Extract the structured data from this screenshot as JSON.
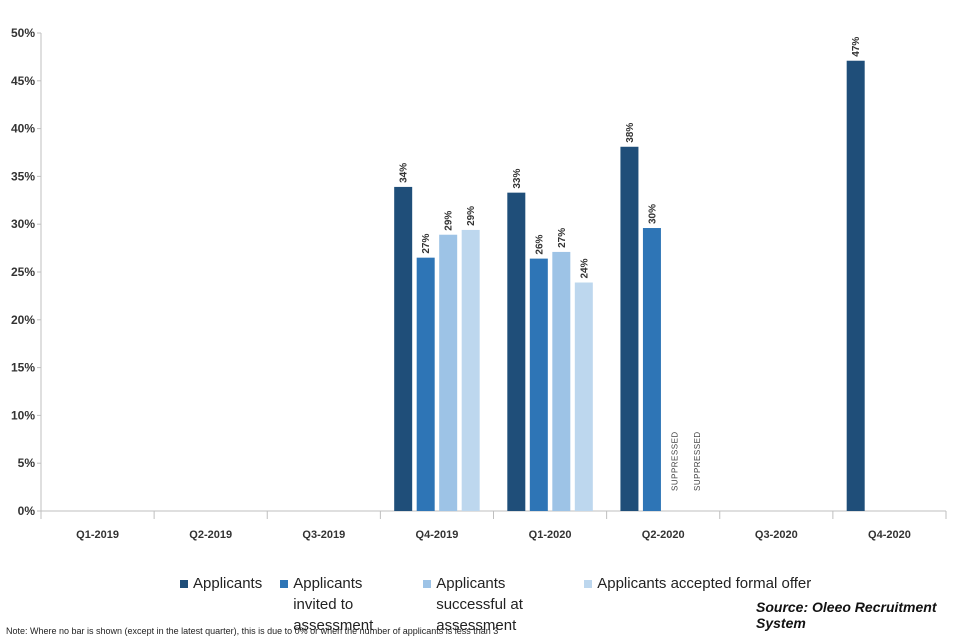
{
  "chart_data": {
    "type": "bar",
    "categories": [
      "Q1-2019",
      "Q2-2019",
      "Q3-2019",
      "Q4-2019",
      "Q1-2020",
      "Q2-2020",
      "Q3-2020",
      "Q4-2020"
    ],
    "series": [
      {
        "name": "Applicants",
        "color": "#1f4e79",
        "values": [
          null,
          null,
          null,
          33.9,
          33.3,
          38.1,
          null,
          47.1
        ],
        "labels": [
          "",
          "",
          "",
          "34%",
          "33%",
          "38%",
          "",
          "47%"
        ]
      },
      {
        "name": "Applicants invited to assessment",
        "color": "#2e75b6",
        "values": [
          null,
          null,
          null,
          26.5,
          26.4,
          29.6,
          null,
          null
        ],
        "labels": [
          "",
          "",
          "",
          "27%",
          "26%",
          "30%",
          "",
          ""
        ]
      },
      {
        "name": "Applicants successful at assessment",
        "color": "#9dc3e6",
        "values": [
          null,
          null,
          null,
          28.9,
          27.1,
          null,
          null,
          null
        ],
        "labels": [
          "",
          "",
          "",
          "29%",
          "27%",
          "",
          "",
          ""
        ]
      },
      {
        "name": "Applicants accepted formal offer",
        "color": "#bdd7ee",
        "values": [
          null,
          null,
          null,
          29.4,
          23.9,
          null,
          null,
          null
        ],
        "labels": [
          "",
          "",
          "",
          "29%",
          "24%",
          "",
          "",
          ""
        ]
      }
    ],
    "suppressed": [
      {
        "category": "Q2-2020",
        "series": "Applicants successful at assessment",
        "text": "SUPPRESSED"
      },
      {
        "category": "Q2-2020",
        "series": "Applicants accepted formal offer",
        "text": "SUPPRESSED"
      }
    ],
    "yticks": [
      "0%",
      "5%",
      "10%",
      "15%",
      "20%",
      "25%",
      "30%",
      "35%",
      "40%",
      "45%",
      "50%"
    ],
    "ylim": [
      0,
      50
    ],
    "grid": false,
    "legend_position": "bottom"
  },
  "legend": {
    "items": [
      {
        "label": "Applicants",
        "color": "#1f4e79"
      },
      {
        "label": "Applicants invited to assessment",
        "color": "#2e75b6"
      },
      {
        "label": "Applicants successful at assessment",
        "color": "#9dc3e6"
      },
      {
        "label": "Applicants accepted formal offer",
        "color": "#bdd7ee"
      }
    ]
  },
  "source": "Source: Oleeo Recruitment System",
  "note": "Note: Where no bar is shown (except in the latest quarter), this is due to 0% or when the number of applicants is less than 3"
}
